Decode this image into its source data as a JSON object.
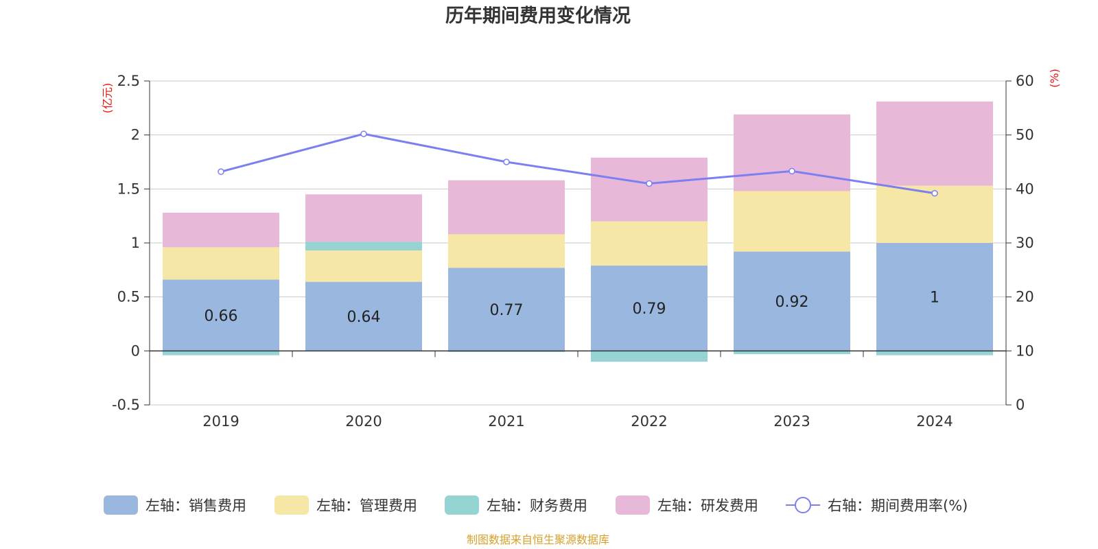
{
  "chart_data": {
    "type": "bar",
    "stacked": true,
    "title": "历年期间费用变化情况",
    "categories": [
      "2019",
      "2020",
      "2021",
      "2022",
      "2023",
      "2024"
    ],
    "y_left": {
      "unit": "(亿元)",
      "range": [
        -0.5,
        2.5
      ],
      "ticks": [
        "-0.5",
        "0",
        "0.5",
        "1",
        "1.5",
        "2",
        "2.5"
      ]
    },
    "y_right": {
      "unit": "(%)",
      "range": [
        0,
        60
      ],
      "ticks": [
        "0",
        "10",
        "20",
        "30",
        "40",
        "50",
        "60"
      ]
    },
    "grid": true,
    "legend_position": "bottom",
    "series": [
      {
        "name": "左轴：销售费用",
        "type": "bar",
        "color": "#9ab7e0",
        "values": [
          0.66,
          0.64,
          0.77,
          0.79,
          0.92,
          1.0
        ],
        "data_labels": [
          "0.66",
          "0.64",
          "0.77",
          "0.79",
          "0.92",
          "1"
        ]
      },
      {
        "name": "左轴：管理费用",
        "type": "bar",
        "color": "#f7e7a6",
        "values": [
          0.3,
          0.29,
          0.31,
          0.41,
          0.56,
          0.53
        ]
      },
      {
        "name": "左轴：财务费用",
        "type": "bar",
        "color": "#96d4d4",
        "values": [
          -0.04,
          0.08,
          -0.01,
          -0.1,
          -0.03,
          -0.04
        ]
      },
      {
        "name": "左轴：研发费用",
        "type": "bar",
        "color": "#e8b8d8",
        "values": [
          0.32,
          0.44,
          0.5,
          0.59,
          0.71,
          0.78
        ]
      },
      {
        "name": "右轴：期间费用率(%)",
        "type": "line",
        "axis": "right",
        "color": "#7b7ff0",
        "values": [
          43.2,
          50.2,
          45.0,
          41.0,
          43.3,
          39.2
        ]
      }
    ]
  },
  "footer": {
    "source": "制图数据来自恒生聚源数据库",
    "source_color": "#d4a22a"
  }
}
